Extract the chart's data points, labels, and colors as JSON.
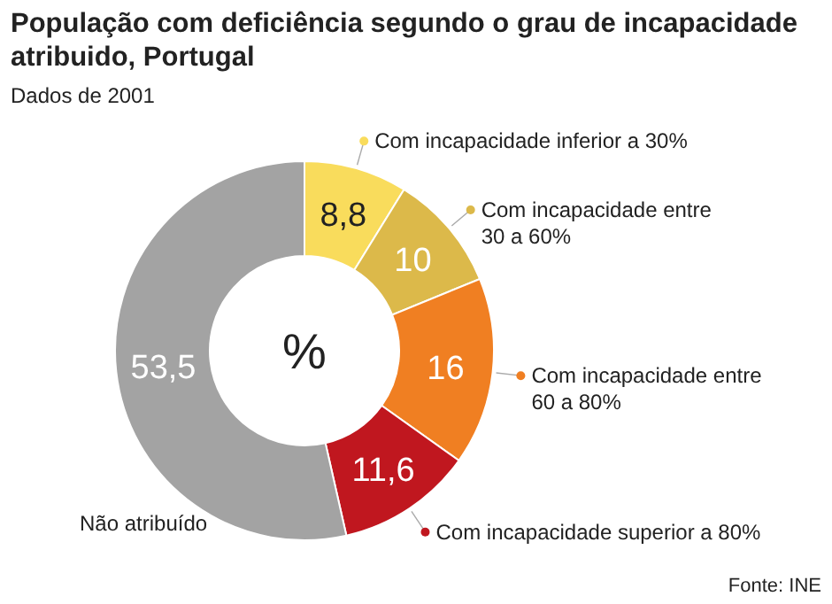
{
  "chart_data": {
    "type": "donut",
    "title": "População com deficiência segundo o grau de incapacidade atribuido, Portugal",
    "subtitle": "Dados de 2001",
    "categories": [
      "Com incapacidade inferior a 30%",
      "Com incapacidade entre 30 a 60%",
      "Com incapacidade entre 60 a 80%",
      "Com incapacidade superior a 80%",
      "Não atribuído"
    ],
    "values": [
      8.8,
      10,
      16,
      11.6,
      53.5
    ],
    "colors": [
      "#f9dc5c",
      "#dcb94a",
      "#f07f22",
      "#c0171f",
      "#a3a3a3"
    ],
    "value_labels": [
      "8,8",
      "10",
      "16",
      "11,6",
      "53,5"
    ],
    "legend": "right",
    "annotations": [
      "%",
      "Fonte: INE"
    ]
  }
}
